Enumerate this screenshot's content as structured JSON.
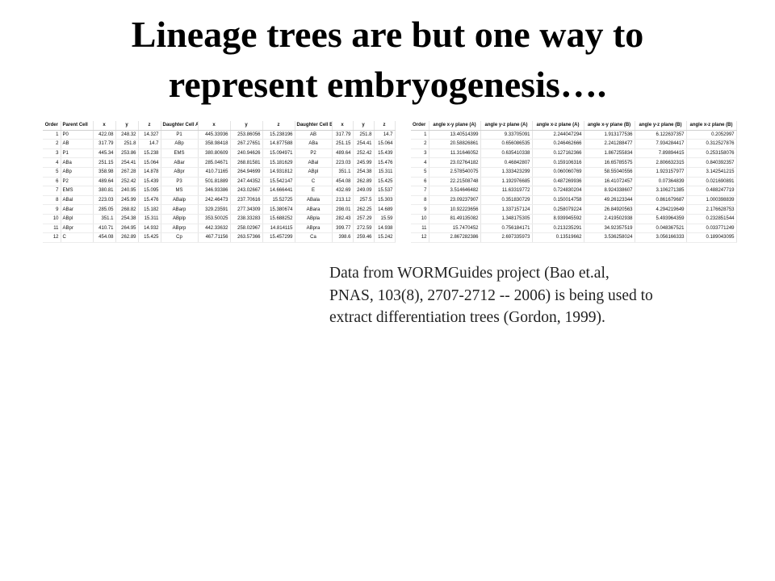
{
  "title": {
    "line1": "Lineage trees are but one way to",
    "line2": "represent embryogenesis…."
  },
  "left_table": {
    "headers": [
      "Order",
      "Parent Cell",
      "x",
      "y",
      "z",
      "Daughter Cell A",
      "x",
      "y",
      "z",
      "Daughter Cell B",
      "x",
      "y",
      "z"
    ],
    "rows": [
      [
        "1",
        "P0",
        "422.08",
        "248.32",
        "14.327",
        "P1",
        "445.33936",
        "253.86056",
        "15.238196",
        "AB",
        "317.79",
        "251.8",
        "14.7"
      ],
      [
        "2",
        "AB",
        "317.79",
        "251.8",
        "14.7",
        "ABp",
        "358.98418",
        "267.27651",
        "14.877588",
        "ABa",
        "251.15",
        "254.41",
        "15.064"
      ],
      [
        "3",
        "P1",
        "445.34",
        "253.86",
        "15.238",
        "EMS",
        "380.80609",
        "240.94626",
        "15.094971",
        "P2",
        "489.64",
        "252.42",
        "15.439"
      ],
      [
        "4",
        "ABa",
        "251.15",
        "254.41",
        "15.064",
        "ABar",
        "285.04671",
        "268.81581",
        "15.181629",
        "ABal",
        "223.03",
        "245.99",
        "15.476"
      ],
      [
        "5",
        "ABp",
        "358.98",
        "267.28",
        "14.878",
        "ABpr",
        "410.71165",
        "264.94699",
        "14.931812",
        "ABpl",
        "351.1",
        "254.38",
        "15.311"
      ],
      [
        "6",
        "P2",
        "489.64",
        "252.42",
        "15.439",
        "P3",
        "501.81889",
        "247.44352",
        "15.542147",
        "C",
        "454.08",
        "262.89",
        "15.425"
      ],
      [
        "7",
        "EMS",
        "380.81",
        "240.95",
        "15.095",
        "MS",
        "346.93386",
        "243.02667",
        "14.666441",
        "E",
        "432.69",
        "249.09",
        "15.537"
      ],
      [
        "8",
        "ABal",
        "223.03",
        "245.99",
        "15.476",
        "ABalp",
        "242.46473",
        "237.70616",
        "15.52725",
        "ABala",
        "213.12",
        "257.5",
        "15.303"
      ],
      [
        "9",
        "ABar",
        "285.05",
        "268.82",
        "15.182",
        "ABarp",
        "329.23591",
        "277.34309",
        "15.380674",
        "ABara",
        "298.01",
        "262.25",
        "14.689"
      ],
      [
        "10",
        "ABpl",
        "351.1",
        "254.38",
        "15.311",
        "ABplp",
        "353.50025",
        "238.33283",
        "15.688252",
        "ABpla",
        "282.43",
        "257.29",
        "15.59"
      ],
      [
        "11",
        "ABpr",
        "410.71",
        "264.95",
        "14.932",
        "ABprp",
        "442.33632",
        "258.02967",
        "14.814115",
        "ABpra",
        "399.77",
        "272.59",
        "14.938"
      ],
      [
        "12",
        "C",
        "454.08",
        "262.89",
        "15.425",
        "Cp",
        "467.71156",
        "263.57366",
        "15.457299",
        "Ca",
        "398.6",
        "259.46",
        "15.242"
      ]
    ]
  },
  "right_table": {
    "headers": [
      "Order",
      "angle x-y plane (A)",
      "angle y-z plane (A)",
      "angle x-z plane (A)",
      "angle x-y plane (B)",
      "angle y-z plane (B)",
      "angle x-z plane (B)"
    ],
    "rows": [
      [
        "1",
        "13.40514399",
        "9.33705091",
        "2.244047294",
        "1.913177536",
        "6.122637357",
        "0.2052997"
      ],
      [
        "2",
        "20.58826861",
        "0.656086535",
        "0.246462666",
        "2.241288477",
        "7.934284417",
        "0.312527876"
      ],
      [
        "3",
        "11.31646052",
        "0.635410338",
        "0.127162366",
        "1.867255834",
        "7.89894415",
        "0.253158076"
      ],
      [
        "4",
        "23.02764182",
        "0.46842807",
        "0.159106316",
        "16.65785575",
        "2.806632315",
        "0.840392357"
      ],
      [
        "5",
        "2.578540075",
        "1.333423299",
        "0.060060769",
        "58.55040556",
        "1.923157977",
        "3.142541215"
      ],
      [
        "6",
        "22.21508748",
        "1.192976685",
        "0.487269936",
        "16.41072457",
        "0.07364839",
        "0.021690891"
      ],
      [
        "7",
        "3.514646482",
        "11.63319772",
        "0.724830204",
        "8.924338607",
        "3.106271385",
        "0.488247719"
      ],
      [
        "8",
        "23.09237907",
        "0.351830729",
        "0.150014758",
        "49.26123344",
        "0.861679687",
        "1.000398839"
      ],
      [
        "9",
        "10.92223656",
        "1.337157124",
        "0.258079224",
        "26.84920563",
        "4.294219649",
        "2.176628753"
      ],
      [
        "10",
        "81.49135082",
        "1.348175305",
        "8.939945592",
        "2.419502938",
        "5.493964359",
        "0.232851544"
      ],
      [
        "11",
        "15.7470452",
        "0.756184171",
        "0.213235291",
        "34.92357519",
        "0.048367521",
        "0.033771249"
      ],
      [
        "12",
        "2.867282386",
        "2.697335973",
        "0.13519662",
        "3.536258024",
        "3.056166333",
        "0.189043095"
      ]
    ]
  },
  "caption": {
    "line1": "Data from WORMGuides project (Bao et.al,",
    "line2": "PNAS, 103(8), 2707-2712 -- 2006) is being used to",
    "line3": "extract differentiation trees (Gordon, 1999)."
  }
}
